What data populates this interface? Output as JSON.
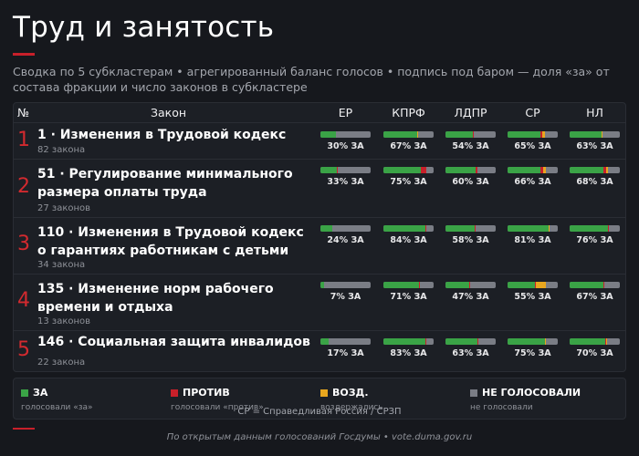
{
  "title": "Труд и занятость",
  "subtitle": "Сводка по 5 субкластерам • агрегированный баланс голосов • подпись под баром — доля «за» от состава фракции и число законов в субкластере",
  "colors": {
    "za": "#3aa346",
    "protiv": "#c8202a",
    "vozd": "#e8a61e",
    "ne": "#7a7d85",
    "accent": "#d22a2f"
  },
  "table": {
    "col_num": "№",
    "col_law": "Закон",
    "parties": [
      "ЕР",
      "КПРФ",
      "ЛДПР",
      "СР",
      "НЛ"
    ]
  },
  "chart_data": {
    "type": "bar",
    "stacked": true,
    "orientation": "horizontal",
    "xlim": [
      0,
      100
    ],
    "categories": [
      "ЕР",
      "КПРФ",
      "ЛДПР",
      "СР",
      "НЛ"
    ],
    "rows": [
      {
        "num": "1",
        "title": "1 · Изменения в Трудовой кодекс",
        "count": "82 закона",
        "values": [
          {
            "za": 30,
            "protiv": 0,
            "vozd": 0,
            "label": "30% ЗА"
          },
          {
            "za": 67,
            "protiv": 1,
            "vozd": 1,
            "label": "67% ЗА"
          },
          {
            "za": 54,
            "protiv": 1,
            "vozd": 0,
            "label": "54% ЗА"
          },
          {
            "za": 65,
            "protiv": 4,
            "vozd": 5,
            "label": "65% ЗА"
          },
          {
            "za": 63,
            "protiv": 1,
            "vozd": 1,
            "label": "63% ЗА"
          }
        ]
      },
      {
        "num": "2",
        "title": "51 · Регулирование минимального размера оплаты труда",
        "count": "27 законов",
        "values": [
          {
            "za": 33,
            "protiv": 1,
            "vozd": 0,
            "label": "33% ЗА"
          },
          {
            "za": 75,
            "protiv": 10,
            "vozd": 0,
            "label": "75% ЗА"
          },
          {
            "za": 60,
            "protiv": 4,
            "vozd": 0,
            "label": "60% ЗА"
          },
          {
            "za": 66,
            "protiv": 5,
            "vozd": 5,
            "label": "66% ЗА"
          },
          {
            "za": 68,
            "protiv": 4,
            "vozd": 5,
            "label": "68% ЗА"
          }
        ]
      },
      {
        "num": "3",
        "title": "110 · Изменения в Трудовой кодекс о гарантиях работникам с детьми",
        "count": "34 закона",
        "values": [
          {
            "za": 24,
            "protiv": 0,
            "vozd": 0,
            "label": "24% ЗА"
          },
          {
            "za": 84,
            "protiv": 1,
            "vozd": 0,
            "label": "84% ЗА"
          },
          {
            "za": 58,
            "protiv": 1,
            "vozd": 0,
            "label": "58% ЗА"
          },
          {
            "za": 81,
            "protiv": 1,
            "vozd": 1,
            "label": "81% ЗА"
          },
          {
            "za": 76,
            "protiv": 1,
            "vozd": 0,
            "label": "76% ЗА"
          }
        ]
      },
      {
        "num": "4",
        "title": "135 · Изменение норм рабочего времени и отдыха",
        "count": "13 законов",
        "values": [
          {
            "za": 7,
            "protiv": 0,
            "vozd": 0,
            "label": "7% ЗА"
          },
          {
            "za": 71,
            "protiv": 1,
            "vozd": 0,
            "label": "71% ЗА"
          },
          {
            "za": 47,
            "protiv": 1,
            "vozd": 0,
            "label": "47% ЗА"
          },
          {
            "za": 55,
            "protiv": 1,
            "vozd": 20,
            "label": "55% ЗА"
          },
          {
            "za": 67,
            "protiv": 1,
            "vozd": 0,
            "label": "67% ЗА"
          }
        ]
      },
      {
        "num": "5",
        "title": "146 · Социальная защита инвалидов",
        "count": "22 закона",
        "values": [
          {
            "za": 17,
            "protiv": 0,
            "vozd": 0,
            "label": "17% ЗА"
          },
          {
            "za": 83,
            "protiv": 1,
            "vozd": 0,
            "label": "83% ЗА"
          },
          {
            "za": 63,
            "protiv": 1,
            "vozd": 0,
            "label": "63% ЗА"
          },
          {
            "za": 75,
            "protiv": 0,
            "vozd": 1,
            "label": "75% ЗА"
          },
          {
            "za": 70,
            "protiv": 2,
            "vozd": 1,
            "label": "70% ЗА"
          }
        ]
      }
    ]
  },
  "legend": {
    "items": [
      {
        "name": "ЗА",
        "desc": "голосовали «за»"
      },
      {
        "name": "ПРОТИВ",
        "desc": "голосовали «против»"
      },
      {
        "name": "ВОЗД.",
        "desc": "воздержались"
      },
      {
        "name": "НЕ ГОЛОСОВАЛИ",
        "desc": "не голосовали"
      }
    ],
    "note": "СР = Справедливая Россия / СРЗП"
  },
  "source": "По открытым данным голосований Госдумы • vote.duma.gov.ru"
}
